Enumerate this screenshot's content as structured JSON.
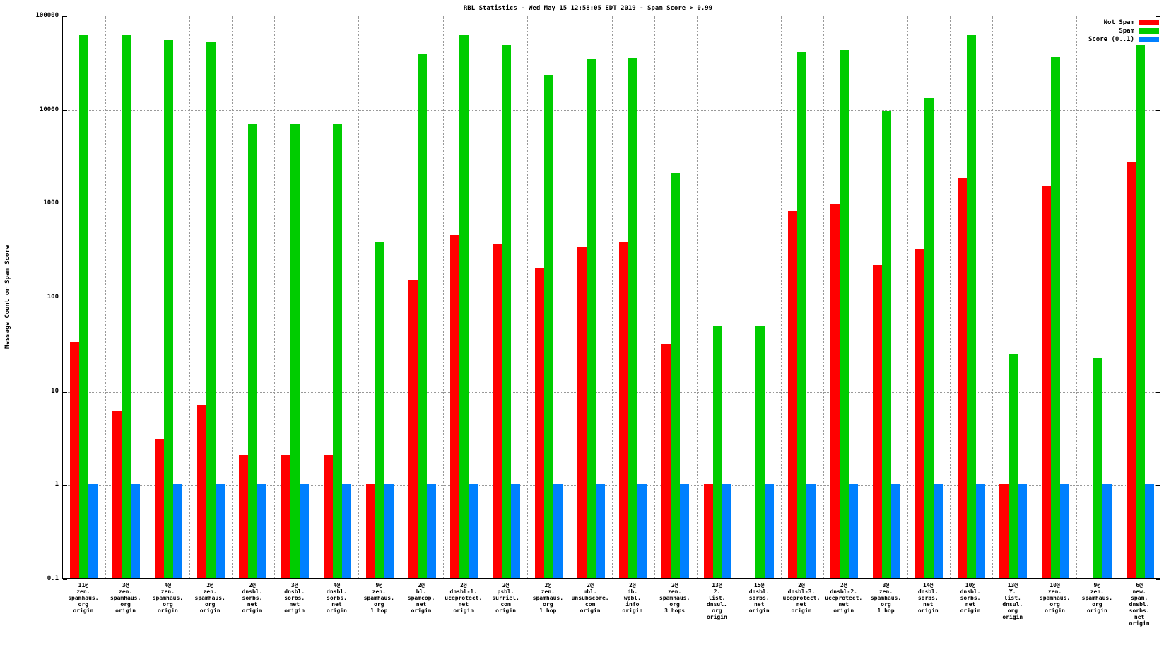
{
  "chart_data": {
    "type": "bar",
    "scale": "log",
    "title": "RBL Statistics - Wed May 15 12:58:05 EDT 2019 - Spam Score > 0.99",
    "ylabel": "Message Count or Spam Score",
    "xlabel": "",
    "ylim": [
      0.1,
      100000
    ],
    "yticks": [
      "100000",
      "10000",
      "1000",
      "100",
      "10",
      "1",
      "0.1"
    ],
    "grid": true,
    "legend_position": "top-right",
    "categories": [
      "11@\nzen.\nspamhaus.\norg\norigin",
      "3@\nzen.\nspamhaus.\norg\norigin",
      "4@\nzen.\nspamhaus.\norg\norigin",
      "2@\nzen.\nspamhaus.\norg\norigin",
      "2@\ndnsbl.\nsorbs.\nnet\norigin",
      "3@\ndnsbl.\nsorbs.\nnet\norigin",
      "4@\ndnsbl.\nsorbs.\nnet\norigin",
      "9@\nzen.\nspamhaus.\norg\n1 hop",
      "2@\nbl.\nspamcop.\nnet\norigin",
      "2@\ndnsbl-1.\nuceprotect.\nnet\norigin",
      "2@\npsbl.\nsurriel.\ncom\norigin",
      "2@\nzen.\nspamhaus.\norg\n1 hop",
      "2@\nubl.\nunsubscore.\ncom\norigin",
      "2@\ndb.\nwpbl.\ninfo\norigin",
      "2@\nzen.\nspamhaus.\norg\n3 hops",
      "13@\n2.\nlist.\ndnsul.\norg\norigin",
      "15@\ndnsbl.\nsorbs.\nnet\norigin",
      "2@\ndnsbl-3.\nuceprotect.\nnet\norigin",
      "2@\ndnsbl-2.\nuceprotect.\nnet\norigin",
      "3@\nzen.\nspamhaus.\norg\n1 hop",
      "14@\ndnsbl.\nsorbs.\nnet\norigin",
      "10@\ndnsbl.\nsorbs.\nnet\norigin",
      "13@\nY.\nlist.\ndnsul.\norg\norigin",
      "10@\nzen.\nspamhaus.\norg\norigin",
      "9@\nzen.\nspamhaus.\norg\norigin",
      "6@\nnew.\nspam.\ndnsbl.\nsorbs.\nnet\norigin"
    ],
    "series": [
      {
        "name": "Not Spam",
        "color": "#ff0000",
        "values": [
          33,
          6,
          3,
          7,
          2,
          2,
          2,
          1,
          150,
          450,
          360,
          200,
          340,
          380,
          31,
          1,
          0,
          800,
          950,
          220,
          320,
          1850,
          1,
          1500,
          0,
          2700
        ]
      },
      {
        "name": "Spam",
        "color": "#00cc00",
        "values": [
          62000,
          60000,
          54000,
          51000,
          6800,
          6800,
          6800,
          380,
          38000,
          62000,
          48000,
          23000,
          34000,
          35000,
          2100,
          48,
          48,
          40000,
          42000,
          9500,
          13000,
          60000,
          24,
          36000,
          22,
          48000
        ]
      },
      {
        "name": "Score (0..1)",
        "color": "#0080ff",
        "values": [
          1,
          1,
          1,
          1,
          1,
          1,
          1,
          1,
          1,
          1,
          1,
          1,
          1,
          1,
          1,
          1,
          1,
          1,
          1,
          1,
          1,
          1,
          1,
          1,
          1,
          1
        ]
      }
    ]
  }
}
